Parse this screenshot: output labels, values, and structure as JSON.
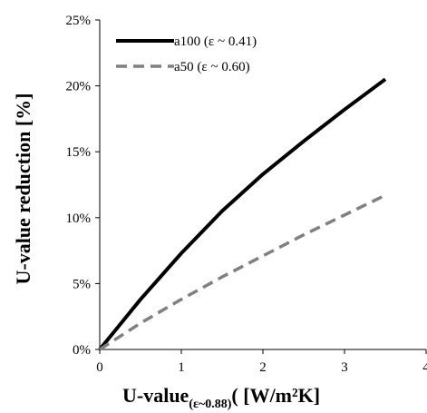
{
  "chart_data": {
    "type": "line",
    "xlabel_main": "U-value",
    "xlabel_sub": "(ε~0.88)",
    "xlabel_tail": "( [W/m²K]",
    "ylabel": "U-value reduction [%]",
    "xlim": [
      0,
      4
    ],
    "ylim": [
      0,
      25
    ],
    "x_ticks": [
      0,
      1,
      2,
      3,
      4
    ],
    "y_ticks": [
      0,
      5,
      10,
      15,
      20,
      25
    ],
    "y_tick_labels": [
      "0%",
      "5%",
      "10%",
      "15%",
      "20%",
      "25%"
    ],
    "legend_position": "top-left",
    "grid": false,
    "series": [
      {
        "name": "a100",
        "legend_label": "a100  (ε ~ 0.41)",
        "color": "#000000",
        "style": "solid",
        "x": [
          0,
          0.5,
          1.0,
          1.5,
          2.0,
          2.5,
          3.0,
          3.5
        ],
        "values": [
          0,
          3.8,
          7.3,
          10.5,
          13.3,
          15.8,
          18.2,
          20.5
        ]
      },
      {
        "name": "a50",
        "legend_label": "a50   (ε ~ 0.60)",
        "color": "#808080",
        "style": "dashed",
        "x": [
          0,
          0.5,
          1.0,
          1.5,
          2.0,
          2.5,
          3.0,
          3.5
        ],
        "values": [
          0,
          2.0,
          3.8,
          5.5,
          7.1,
          8.7,
          10.2,
          11.7
        ]
      }
    ]
  }
}
